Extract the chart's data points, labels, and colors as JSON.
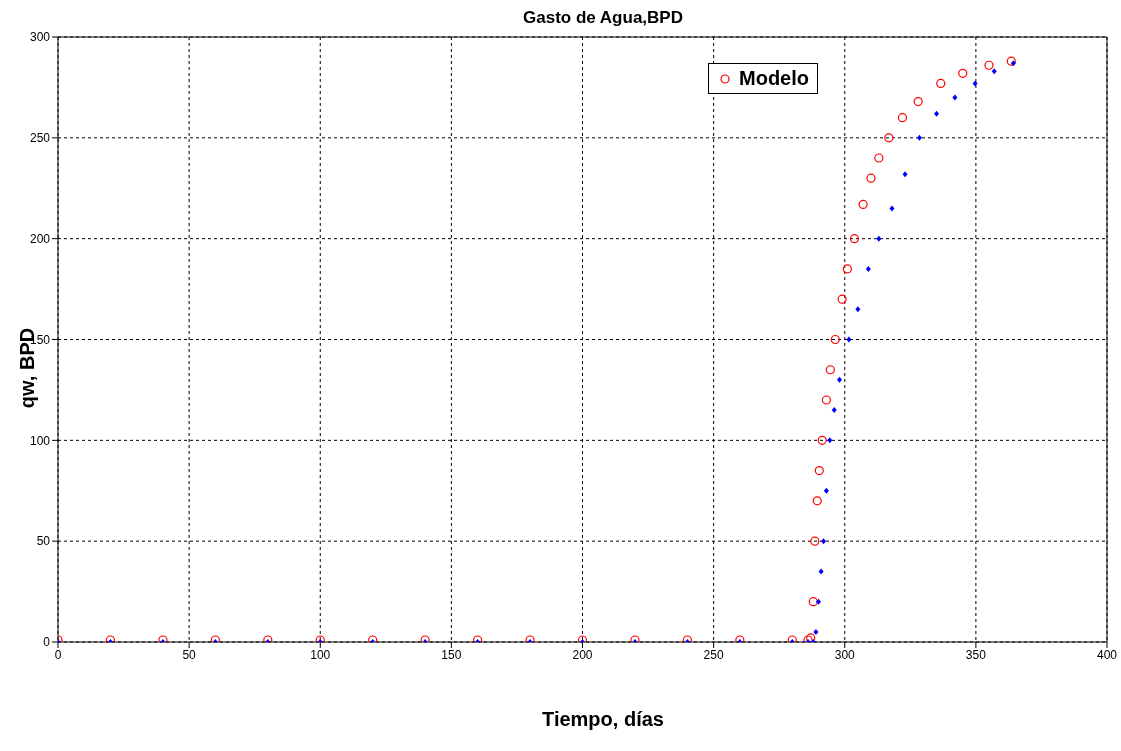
{
  "chart_data": {
    "type": "scatter",
    "title": "Gasto de Agua,BPD",
    "xlabel": "Tiempo, días",
    "ylabel": "qw, BPD",
    "xlim": [
      0,
      400
    ],
    "xticks": [
      0,
      50,
      100,
      150,
      200,
      250,
      300,
      350,
      400
    ],
    "ylim": [
      0,
      300
    ],
    "yticks": [
      0,
      50,
      100,
      150,
      200,
      250,
      300
    ],
    "grid": true,
    "legend": "top right",
    "series": [
      {
        "name": "Modelo",
        "color": "#ff0000",
        "marker": "circle",
        "x": [
          0,
          20,
          40,
          60,
          80,
          100,
          120,
          140,
          160,
          180,
          200,
          220,
          240,
          260,
          280,
          286,
          287,
          288,
          288.6,
          289.5,
          290.3,
          291.4,
          293,
          294.5,
          296.4,
          299,
          301,
          303.7,
          307,
          310,
          313,
          316.8,
          322,
          328,
          336.6,
          345,
          355,
          363.5
        ],
        "values": [
          1,
          1,
          1,
          1,
          1,
          1,
          1,
          1,
          1,
          1,
          1,
          1,
          1,
          1,
          1,
          1,
          2,
          20,
          50,
          70,
          85,
          100,
          120,
          135,
          150,
          170,
          185,
          200,
          217,
          230,
          240,
          250,
          260,
          268,
          277,
          282,
          286,
          288
        ]
      },
      {
        "color": "#0000ff",
        "marker": "diamond",
        "x": [
          0,
          20,
          40,
          60,
          80,
          100,
          120,
          140,
          160,
          180,
          200,
          220,
          240,
          260,
          280,
          286,
          288,
          289,
          290,
          291,
          291.9,
          293,
          294.3,
          296,
          298,
          301.6,
          305,
          309,
          313,
          318,
          323,
          328.5,
          335,
          342,
          349.7,
          357,
          364.3
        ],
        "values": [
          0,
          0,
          0,
          0,
          0,
          0,
          0,
          0,
          0,
          0,
          0,
          0,
          0,
          0,
          0,
          0,
          0,
          5,
          20,
          35,
          50,
          75,
          100,
          115,
          130,
          150,
          165,
          185,
          200,
          215,
          232,
          250,
          262,
          270,
          277,
          283,
          287
        ]
      }
    ]
  }
}
